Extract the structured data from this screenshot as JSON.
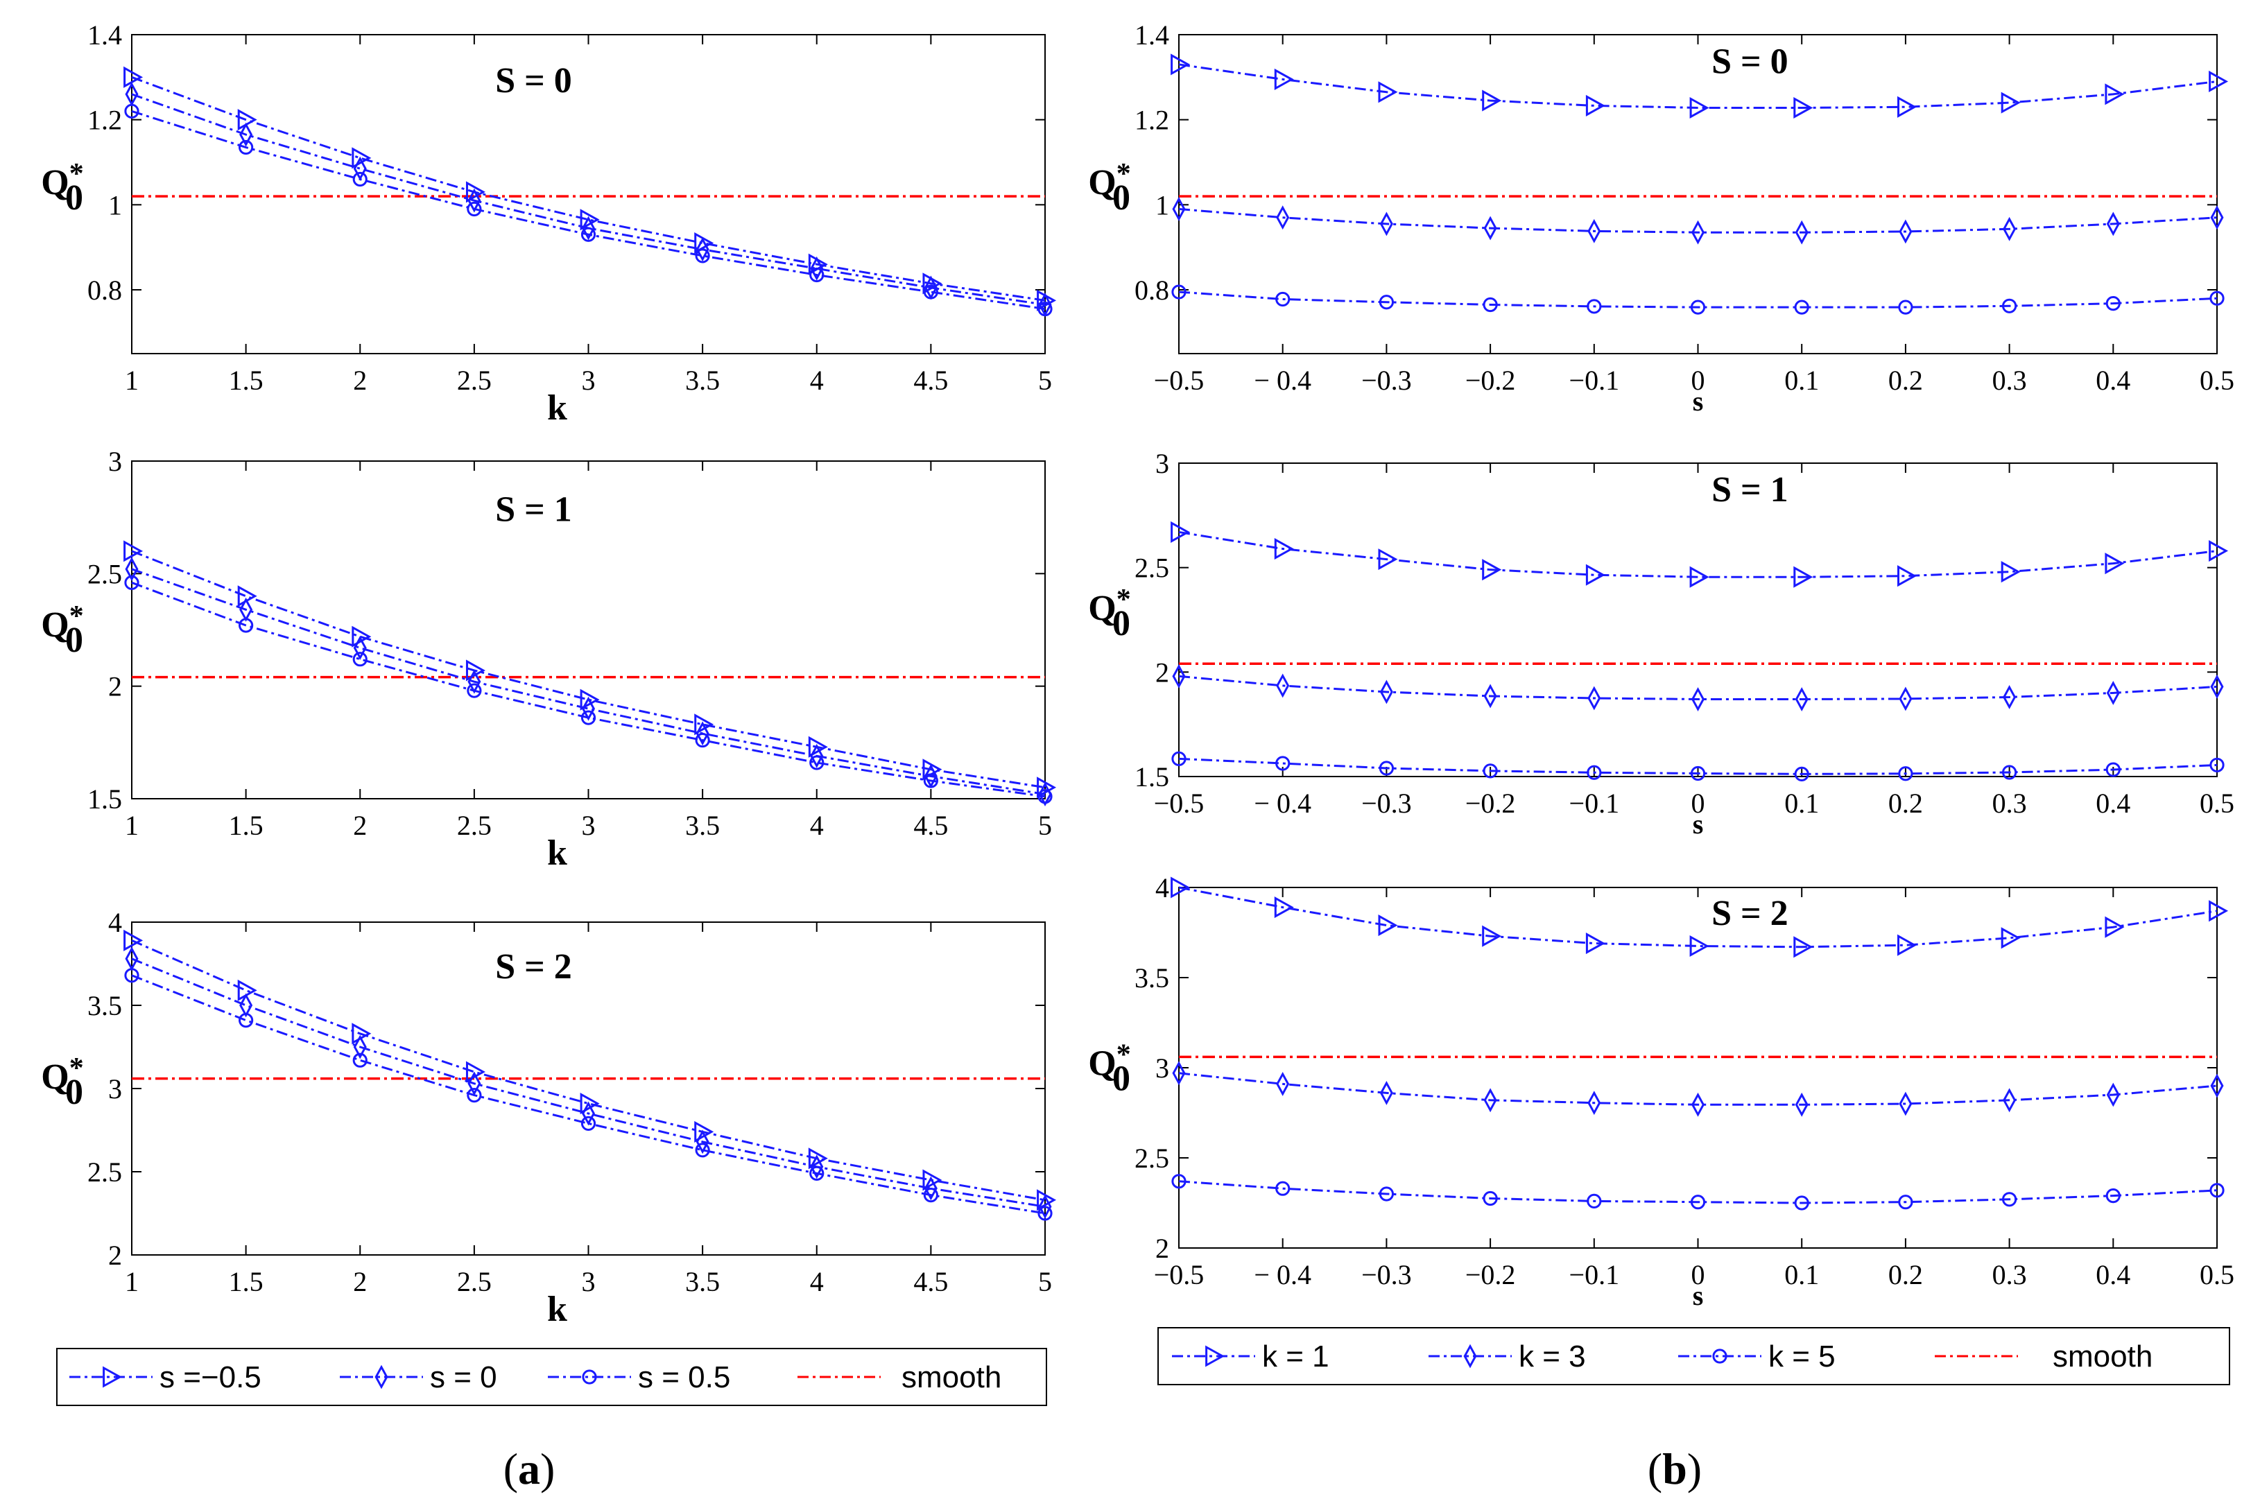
{
  "ylabel_main": "Q",
  "ylabel_star": "*",
  "ylabel_sub": "0",
  "captions": {
    "a": {
      "open": "(",
      "letter": "a",
      "close": ")"
    },
    "b": {
      "open": "(",
      "letter": "b",
      "close": ")"
    }
  },
  "colors": {
    "series": "#1a1aff",
    "smooth": "#ff0000"
  },
  "legends": {
    "a": [
      {
        "label": "s =−0.5",
        "marker": "triangle",
        "color": "#1a1aff"
      },
      {
        "label": "s = 0",
        "marker": "diamond",
        "color": "#1a1aff"
      },
      {
        "label": "s = 0.5",
        "marker": "circle",
        "color": "#1a1aff"
      },
      {
        "label": "smooth",
        "marker": "none",
        "color": "#ff0000"
      }
    ],
    "b": [
      {
        "label": "k = 1",
        "marker": "triangle",
        "color": "#1a1aff"
      },
      {
        "label": "k = 3",
        "marker": "diamond",
        "color": "#1a1aff"
      },
      {
        "label": "k = 5",
        "marker": "circle",
        "color": "#1a1aff"
      },
      {
        "label": "smooth",
        "marker": "none",
        "color": "#ff0000"
      }
    ]
  },
  "chart_data": [
    {
      "id": "a1",
      "type": "line",
      "title": "S = 0",
      "xlabel": "k",
      "ylabel": "Q0*",
      "xlim": [
        1,
        5
      ],
      "ylim": [
        0.65,
        1.4
      ],
      "xticks": [
        1,
        1.5,
        2,
        2.5,
        3,
        3.5,
        4,
        4.5,
        5
      ],
      "xticklabels": [
        "1",
        "1.5",
        "2",
        "2.5",
        "3",
        "3.5",
        "4",
        "4.5",
        "5"
      ],
      "yticks": [
        0.8,
        1,
        1.2,
        1.4
      ],
      "yticklabels": [
        "0.8",
        "1",
        "1.2",
        "1.4"
      ],
      "x": [
        1,
        1.5,
        2,
        2.5,
        3,
        3.5,
        4,
        4.5,
        5
      ],
      "series": [
        {
          "name": "s =−0.5",
          "marker": "triangle",
          "values": [
            1.3,
            1.2,
            1.11,
            1.03,
            0.965,
            0.91,
            0.86,
            0.815,
            0.775
          ]
        },
        {
          "name": "s = 0",
          "marker": "diamond",
          "values": [
            1.26,
            1.165,
            1.085,
            1.01,
            0.945,
            0.895,
            0.85,
            0.805,
            0.765
          ]
        },
        {
          "name": "s = 0.5",
          "marker": "circle",
          "values": [
            1.22,
            1.135,
            1.06,
            0.99,
            0.93,
            0.88,
            0.835,
            0.795,
            0.755
          ]
        }
      ],
      "smooth": 1.02
    },
    {
      "id": "a2",
      "type": "line",
      "title": "S = 1",
      "xlabel": "k",
      "ylabel": "Q0*",
      "xlim": [
        1,
        5
      ],
      "ylim": [
        1.5,
        3
      ],
      "xticks": [
        1,
        1.5,
        2,
        2.5,
        3,
        3.5,
        4,
        4.5,
        5
      ],
      "xticklabels": [
        "1",
        "1.5",
        "2",
        "2.5",
        "3",
        "3.5",
        "4",
        "4.5",
        "5"
      ],
      "yticks": [
        1.5,
        2,
        2.5,
        3
      ],
      "yticklabels": [
        "1.5",
        "2",
        "2.5",
        "3"
      ],
      "x": [
        1,
        1.5,
        2,
        2.5,
        3,
        3.5,
        4,
        4.5,
        5
      ],
      "series": [
        {
          "name": "s =−0.5",
          "marker": "triangle",
          "values": [
            2.6,
            2.4,
            2.22,
            2.07,
            1.94,
            1.83,
            1.73,
            1.63,
            1.55
          ]
        },
        {
          "name": "s = 0",
          "marker": "diamond",
          "values": [
            2.52,
            2.34,
            2.17,
            2.02,
            1.9,
            1.79,
            1.69,
            1.6,
            1.52
          ]
        },
        {
          "name": "s = 0.5",
          "marker": "circle",
          "values": [
            2.46,
            2.27,
            2.12,
            1.98,
            1.86,
            1.76,
            1.66,
            1.58,
            1.51
          ]
        }
      ],
      "smooth": 2.04
    },
    {
      "id": "a3",
      "type": "line",
      "title": "S = 2",
      "xlabel": "k",
      "ylabel": "Q0*",
      "xlim": [
        1,
        5
      ],
      "ylim": [
        2,
        4
      ],
      "xticks": [
        1,
        1.5,
        2,
        2.5,
        3,
        3.5,
        4,
        4.5,
        5
      ],
      "xticklabels": [
        "1",
        "1.5",
        "2",
        "2.5",
        "3",
        "3.5",
        "4",
        "4.5",
        "5"
      ],
      "yticks": [
        2,
        2.5,
        3,
        3.5,
        4
      ],
      "yticklabels": [
        "2",
        "2.5",
        "3",
        "3.5",
        "4"
      ],
      "x": [
        1,
        1.5,
        2,
        2.5,
        3,
        3.5,
        4,
        4.5,
        5
      ],
      "series": [
        {
          "name": "s =−0.5",
          "marker": "triangle",
          "values": [
            3.89,
            3.59,
            3.33,
            3.1,
            2.91,
            2.74,
            2.58,
            2.45,
            2.33
          ]
        },
        {
          "name": "s = 0",
          "marker": "diamond",
          "values": [
            3.78,
            3.5,
            3.25,
            3.03,
            2.85,
            2.68,
            2.53,
            2.4,
            2.29
          ]
        },
        {
          "name": "s = 0.5",
          "marker": "circle",
          "values": [
            3.68,
            3.41,
            3.17,
            2.96,
            2.79,
            2.63,
            2.49,
            2.36,
            2.25
          ]
        }
      ],
      "smooth": 3.06
    },
    {
      "id": "b1",
      "type": "line",
      "title": "S = 0",
      "xlabel": "s",
      "ylabel": "Q0*",
      "xlim": [
        -0.5,
        0.5
      ],
      "ylim": [
        0.65,
        1.4
      ],
      "xticks": [
        -0.5,
        -0.4,
        -0.3,
        -0.2,
        -0.1,
        0,
        0.1,
        0.2,
        0.3,
        0.4,
        0.5
      ],
      "xticklabels": [
        "−0.5",
        "− 0.4",
        "−0.3",
        "−0.2",
        "−0.1",
        "0",
        "0.1",
        "0.2",
        "0.3",
        "0.4",
        "0.5"
      ],
      "yticks": [
        0.8,
        1,
        1.2,
        1.4
      ],
      "yticklabels": [
        "0.8",
        "1",
        "1.2",
        "1.4"
      ],
      "x": [
        -0.5,
        -0.4,
        -0.3,
        -0.2,
        -0.1,
        0,
        0.1,
        0.2,
        0.3,
        0.4,
        0.5
      ],
      "series": [
        {
          "name": "k = 1",
          "marker": "triangle",
          "values": [
            1.33,
            1.295,
            1.265,
            1.245,
            1.233,
            1.228,
            1.228,
            1.23,
            1.24,
            1.26,
            1.29
          ]
        },
        {
          "name": "k = 3",
          "marker": "diamond",
          "values": [
            0.99,
            0.97,
            0.955,
            0.945,
            0.938,
            0.935,
            0.935,
            0.937,
            0.943,
            0.955,
            0.97
          ]
        },
        {
          "name": "k = 5",
          "marker": "circle",
          "values": [
            0.795,
            0.778,
            0.771,
            0.765,
            0.761,
            0.759,
            0.759,
            0.759,
            0.762,
            0.768,
            0.78
          ]
        }
      ],
      "smooth": 1.02
    },
    {
      "id": "b2",
      "type": "line",
      "title": "S = 1",
      "xlabel": "s",
      "ylabel": "Q0*",
      "xlim": [
        -0.5,
        0.5
      ],
      "ylim": [
        1.5,
        3
      ],
      "xticks": [
        -0.5,
        -0.4,
        -0.3,
        -0.2,
        -0.1,
        0,
        0.1,
        0.2,
        0.3,
        0.4,
        0.5
      ],
      "xticklabels": [
        "−0.5",
        "− 0.4",
        "−0.3",
        "−0.2",
        "−0.1",
        "0",
        "0.1",
        "0.2",
        "0.3",
        "0.4",
        "0.5"
      ],
      "yticks": [
        1.5,
        2,
        2.5,
        3
      ],
      "yticklabels": [
        "1.5",
        "2",
        "2.5",
        "3"
      ],
      "x": [
        -0.5,
        -0.4,
        -0.3,
        -0.2,
        -0.1,
        0,
        0.1,
        0.2,
        0.3,
        0.4,
        0.5
      ],
      "series": [
        {
          "name": "k = 1",
          "marker": "triangle",
          "values": [
            2.67,
            2.59,
            2.54,
            2.49,
            2.465,
            2.455,
            2.455,
            2.46,
            2.48,
            2.52,
            2.58
          ]
        },
        {
          "name": "k = 3",
          "marker": "diamond",
          "values": [
            1.98,
            1.935,
            1.905,
            1.885,
            1.875,
            1.87,
            1.87,
            1.872,
            1.88,
            1.9,
            1.93
          ]
        },
        {
          "name": "k = 5",
          "marker": "circle",
          "values": [
            1.585,
            1.563,
            1.54,
            1.527,
            1.519,
            1.515,
            1.512,
            1.514,
            1.52,
            1.533,
            1.555
          ]
        }
      ],
      "smooth": 2.04
    },
    {
      "id": "b3",
      "type": "line",
      "title": "S = 2",
      "xlabel": "s",
      "ylabel": "Q0*",
      "xlim": [
        -0.5,
        0.5
      ],
      "ylim": [
        2,
        4
      ],
      "xticks": [
        -0.5,
        -0.4,
        -0.3,
        -0.2,
        -0.1,
        0,
        0.1,
        0.2,
        0.3,
        0.4,
        0.5
      ],
      "xticklabels": [
        "−0.5",
        "− 0.4",
        "−0.3",
        "−0.2",
        "−0.1",
        "0",
        "0.1",
        "0.2",
        "0.3",
        "0.4",
        "0.5"
      ],
      "yticks": [
        2,
        2.5,
        3,
        3.5,
        4
      ],
      "yticklabels": [
        "2",
        "2.5",
        "3",
        "3.5",
        "4"
      ],
      "x": [
        -0.5,
        -0.4,
        -0.3,
        -0.2,
        -0.1,
        0,
        0.1,
        0.2,
        0.3,
        0.4,
        0.5
      ],
      "series": [
        {
          "name": "k = 1",
          "marker": "triangle",
          "values": [
            4.0,
            3.89,
            3.79,
            3.73,
            3.69,
            3.675,
            3.67,
            3.68,
            3.72,
            3.78,
            3.87
          ]
        },
        {
          "name": "k = 3",
          "marker": "diamond",
          "values": [
            2.97,
            2.91,
            2.86,
            2.82,
            2.805,
            2.795,
            2.795,
            2.8,
            2.82,
            2.85,
            2.9
          ]
        },
        {
          "name": "k = 5",
          "marker": "circle",
          "values": [
            2.37,
            2.33,
            2.3,
            2.275,
            2.26,
            2.255,
            2.25,
            2.255,
            2.27,
            2.29,
            2.32
          ]
        }
      ],
      "smooth": 3.06
    }
  ]
}
